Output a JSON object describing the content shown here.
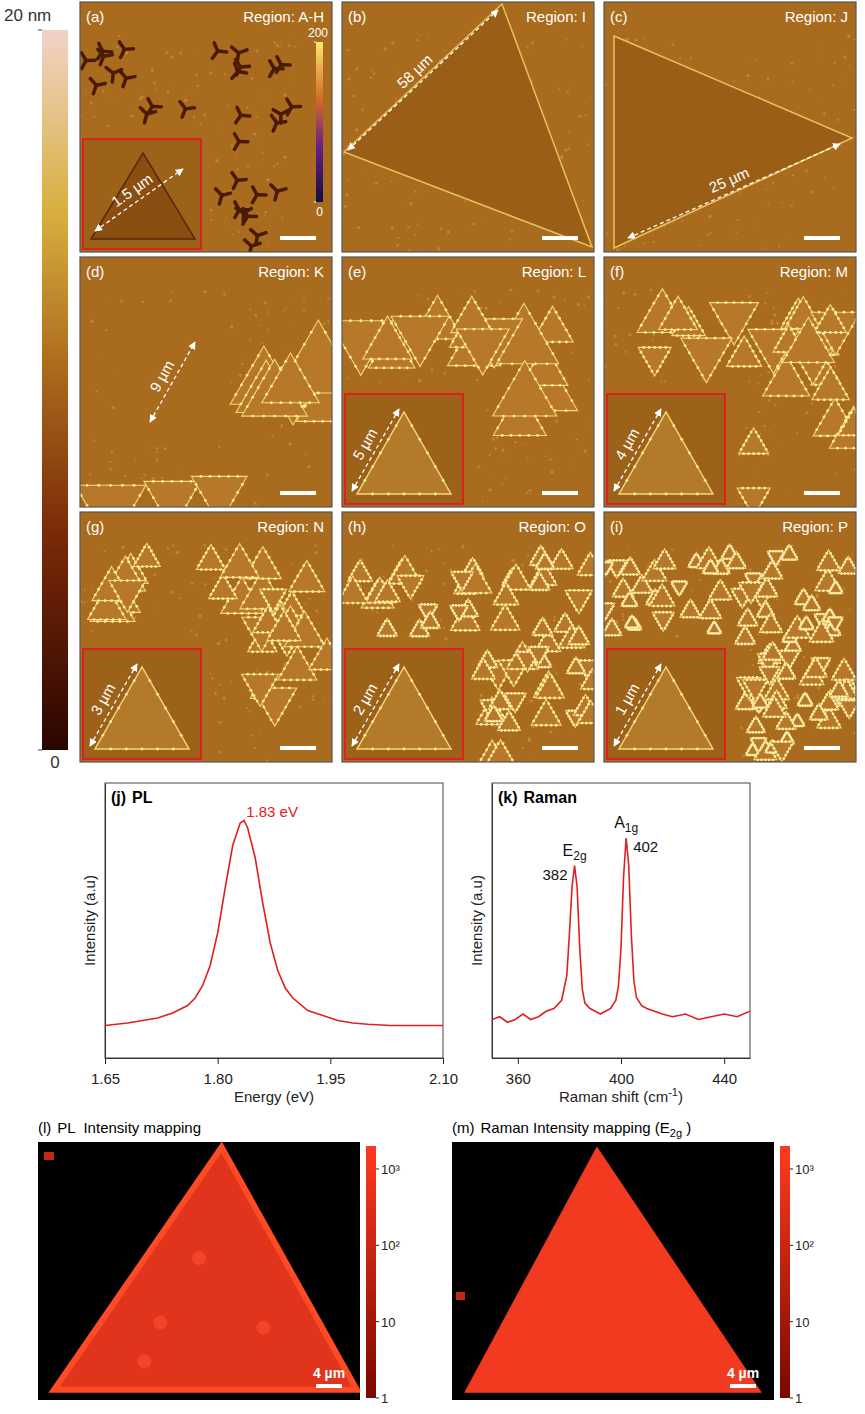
{
  "colorbar": {
    "range": [
      0,
      20
    ],
    "ticks": [
      0,
      {
        "value": 20,
        "label": "20 nm"
      }
    ]
  },
  "afm_panels": [
    {
      "letter": "(a)",
      "region": "Region: A-H",
      "size_label": "1.5 µm",
      "inset": true,
      "colorbar": {
        "range": [
          0,
          200
        ],
        "ticks": [
          0,
          200
        ]
      }
    },
    {
      "letter": "(b)",
      "region": "Region: I",
      "size_label": "58 µm",
      "inset": false
    },
    {
      "letter": "(c)",
      "region": "Region: J",
      "size_label": "25 µm",
      "inset": false
    },
    {
      "letter": "(d)",
      "region": "Region: K",
      "size_label": "9 µm",
      "inset": false
    },
    {
      "letter": "(e)",
      "region": "Region: L",
      "size_label": "5 µm",
      "inset": true
    },
    {
      "letter": "(f)",
      "region": "Region: M",
      "size_label": "4 µm",
      "inset": true
    },
    {
      "letter": "(g)",
      "region": "Region: N",
      "size_label": "3 µm",
      "inset": true
    },
    {
      "letter": "(h)",
      "region": "Region: O",
      "size_label": "2 µm",
      "inset": true
    },
    {
      "letter": "(i)",
      "region": "Region: P",
      "size_label": "1 µm",
      "inset": true
    }
  ],
  "chart_data": [
    {
      "type": "line",
      "letter": "(j)",
      "title": "PL",
      "x_label": "Energy (eV)",
      "y_label": "Intensity (a.u)",
      "xlim": [
        1.65,
        2.1
      ],
      "xticks": [
        1.65,
        {
          "value": 1.8,
          "label": "1.80"
        },
        1.95,
        {
          "value": 2.1,
          "label": "2.10"
        }
      ],
      "ylim": [
        0,
        110
      ],
      "tick_labels": "x",
      "color": "#e02020",
      "x": [
        1.65,
        1.68,
        1.7,
        1.72,
        1.74,
        1.76,
        1.77,
        1.78,
        1.79,
        1.8,
        1.81,
        1.82,
        1.83,
        1.835,
        1.84,
        1.85,
        1.86,
        1.87,
        1.88,
        1.89,
        1.9,
        1.92,
        1.94,
        1.96,
        1.98,
        2.0,
        2.03,
        2.06,
        2.1
      ],
      "values": [
        13,
        14,
        15,
        16,
        18,
        21,
        24,
        29,
        37,
        50,
        68,
        85,
        94,
        95,
        92,
        80,
        62,
        46,
        35,
        28,
        24,
        19,
        17,
        15,
        14,
        13.5,
        13,
        13,
        13
      ],
      "annotations": [
        {
          "text": "1.83 eV",
          "x": 1.83,
          "y": 95
        }
      ]
    },
    {
      "type": "line",
      "letter": "(k)",
      "title": "Raman",
      "x_label": [
        {
          "text": "Raman shift (cm"
        },
        {
          "text": "-1",
          "sup": true
        },
        {
          "text": ")"
        }
      ],
      "y_label": "Intensity (a.u)",
      "xlim": [
        350,
        450
      ],
      "xticks": [
        360,
        400,
        440
      ],
      "ylim": [
        0,
        100
      ],
      "tick_labels": "x",
      "color": "#e02020",
      "x": [
        350,
        353,
        356,
        359,
        362,
        365,
        368,
        371,
        374,
        377,
        379,
        380,
        381,
        382,
        383,
        384,
        385,
        386,
        388,
        390,
        392,
        394,
        396,
        398,
        399,
        400,
        401,
        402,
        403,
        404,
        405,
        406,
        408,
        410,
        413,
        416,
        420,
        425,
        430,
        435,
        440,
        445,
        450
      ],
      "values": [
        14,
        15,
        13,
        14,
        16,
        14,
        15,
        17,
        18,
        21,
        30,
        45,
        62,
        70,
        62,
        40,
        25,
        20,
        18,
        17,
        16,
        17,
        18,
        21,
        26,
        40,
        66,
        80,
        70,
        45,
        28,
        22,
        19,
        18,
        17,
        16,
        15,
        16,
        14,
        15,
        16,
        15,
        17
      ],
      "peaks": [
        {
          "symbol": [
            {
              "text": "E"
            },
            {
              "text": "2g",
              "sub": true
            }
          ],
          "position": 382
        },
        {
          "symbol": [
            {
              "text": "A"
            },
            {
              "text": "1g",
              "sub": true
            }
          ],
          "position": 402
        }
      ]
    }
  ],
  "maps": [
    {
      "letter": "(l)",
      "title": "PL  Intensity mapping",
      "scale_bar": "4 µm",
      "colorbar": {
        "range": [
          1,
          2000
        ],
        "log": true,
        "ticks": [
          1,
          10,
          {
            "value": 100,
            "label": "10²"
          },
          {
            "value": 1000,
            "label": "10³"
          }
        ]
      }
    },
    {
      "letter": "(m)",
      "title": [
        {
          "text": "Raman Intensity mapping (E"
        },
        {
          "text": "2g",
          "sub": true
        },
        {
          "text": " )"
        }
      ],
      "scale_bar": "4 µm",
      "colorbar": {
        "range": [
          1,
          2000
        ],
        "log": true,
        "ticks": [
          1,
          10,
          {
            "value": 100,
            "label": "10²"
          },
          {
            "value": 1000,
            "label": "10³"
          }
        ]
      }
    }
  ]
}
